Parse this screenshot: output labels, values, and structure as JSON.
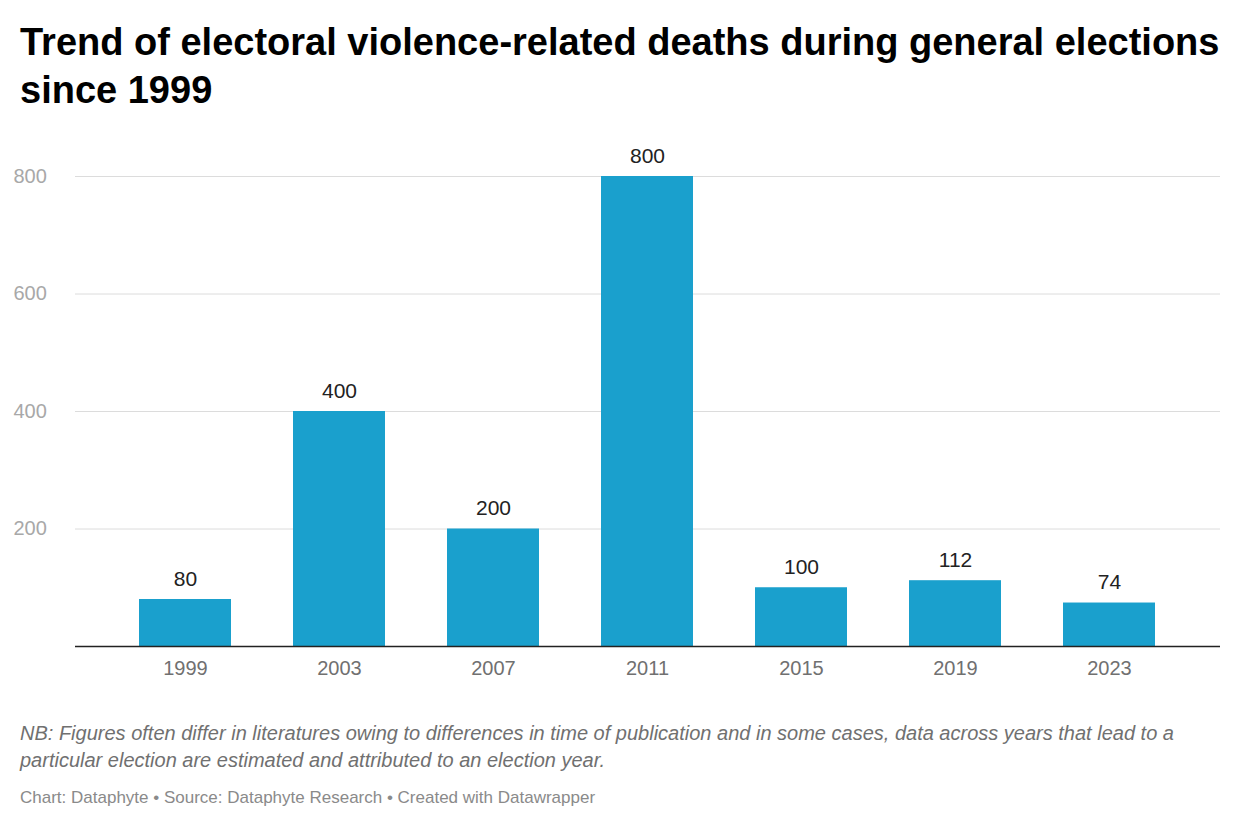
{
  "chart_data": {
    "type": "bar",
    "title": "Trend of electoral violence-related deaths during general elections since 1999",
    "categories": [
      "1999",
      "2003",
      "2007",
      "2011",
      "2015",
      "2019",
      "2023"
    ],
    "values": [
      80,
      400,
      200,
      800,
      100,
      112,
      74
    ],
    "color": "#1aa0cd",
    "ylim": [
      0,
      800
    ],
    "yticks": [
      200,
      400,
      600,
      800
    ],
    "grid": true,
    "data_labels": true,
    "note": "NB: Figures often differ in literatures owing to differences in time of publication and in some cases, data across years that lead to a particular election are estimated and attributed to an election year.",
    "source": "Chart: Dataphyte • Source: Dataphyte Research • Created with Datawrapper"
  }
}
